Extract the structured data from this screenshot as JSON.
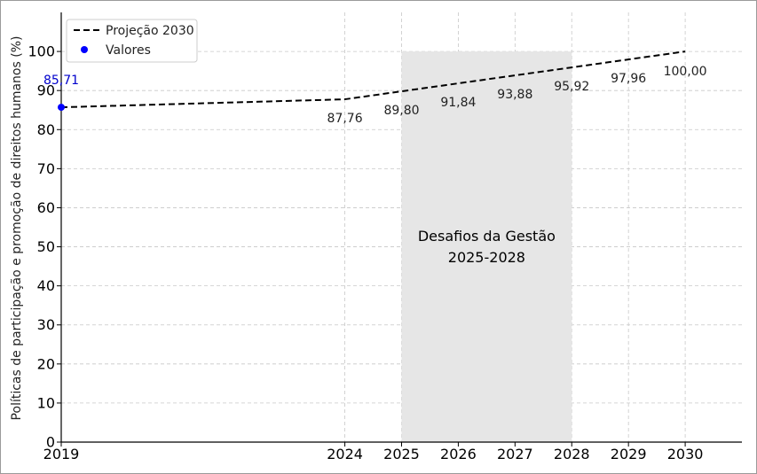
{
  "chart_data": {
    "type": "line",
    "ylabel": "Políticas de participação e promoção de direitos humanos (%)",
    "xlabel": "",
    "title": "",
    "xlim": [
      2019,
      2031
    ],
    "ylim": [
      0,
      110
    ],
    "x_ticks": [
      "2019",
      "2024",
      "2025",
      "2026",
      "2027",
      "2028",
      "2029",
      "2030"
    ],
    "y_ticks": [
      "0",
      "10",
      "20",
      "30",
      "40",
      "50",
      "60",
      "70",
      "80",
      "90",
      "100"
    ],
    "grid": true,
    "legend_position": "top-left",
    "series": [
      {
        "name": "Projeção 2030",
        "style": "dashed",
        "color": "#000000",
        "points": [
          {
            "x": 2019,
            "y": 85.71
          },
          {
            "x": 2024,
            "y": 87.76
          },
          {
            "x": 2025,
            "y": 89.8
          },
          {
            "x": 2026,
            "y": 91.84
          },
          {
            "x": 2027,
            "y": 93.88
          },
          {
            "x": 2028,
            "y": 95.92
          },
          {
            "x": 2029,
            "y": 97.96
          },
          {
            "x": 2030,
            "y": 100.0
          }
        ]
      },
      {
        "name": "Valores",
        "style": "marker",
        "color": "#0000ff",
        "points": [
          {
            "x": 2019,
            "y": 85.71
          }
        ]
      }
    ],
    "data_labels": [
      {
        "x": 2019,
        "y": 85.71,
        "text": "85,71",
        "color": "#0000cc"
      },
      {
        "x": 2024,
        "y": 87.76,
        "text": "87,76"
      },
      {
        "x": 2025,
        "y": 89.8,
        "text": "89,80"
      },
      {
        "x": 2026,
        "y": 91.84,
        "text": "91,84"
      },
      {
        "x": 2027,
        "y": 93.88,
        "text": "93,88"
      },
      {
        "x": 2028,
        "y": 95.92,
        "text": "95,92"
      },
      {
        "x": 2029,
        "y": 97.96,
        "text": "97,96"
      },
      {
        "x": 2030,
        "y": 100.0,
        "text": "100,00"
      }
    ],
    "shaded_region": {
      "x_start": 2025,
      "x_end": 2028,
      "y_top": 100,
      "label_lines": [
        "Desafios da Gestão",
        "2025-2028"
      ],
      "color": "#e6e6e6"
    }
  }
}
